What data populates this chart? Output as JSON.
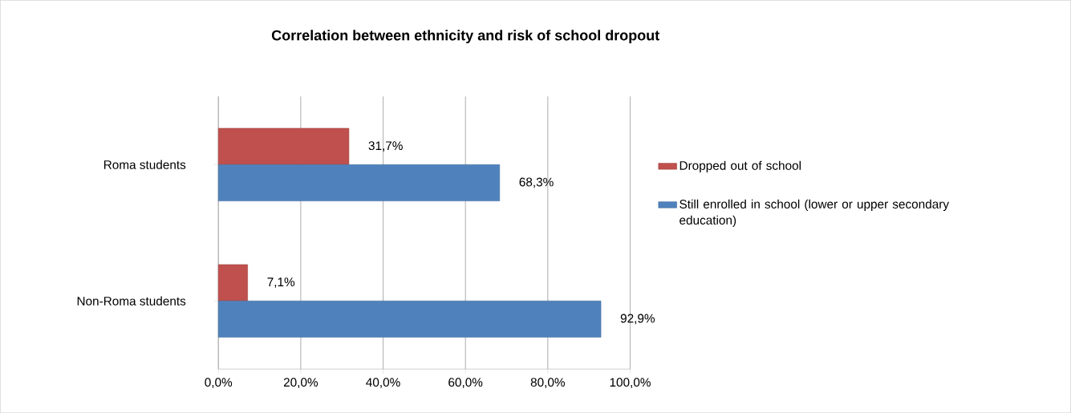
{
  "chart_data": {
    "type": "bar",
    "orientation": "horizontal",
    "title": "Correlation between ethnicity and risk of school dropout",
    "categories": [
      "Roma students",
      "Non-Roma students"
    ],
    "series": [
      {
        "name": "Dropped out of school",
        "color": "#c0504d",
        "values": [
          31.7,
          7.1
        ],
        "value_labels": [
          "31,7%",
          "7,1%"
        ]
      },
      {
        "name": "Still enrolled in school (lower or upper secondary education)",
        "color": "#4f81bd",
        "values": [
          68.3,
          92.9
        ],
        "value_labels": [
          "68,3%",
          "92,9%"
        ]
      }
    ],
    "xlim": [
      0,
      100
    ],
    "xticks": [
      {
        "value": 0,
        "label": "0,0%"
      },
      {
        "value": 20,
        "label": "20,0%"
      },
      {
        "value": 40,
        "label": "40,0%"
      },
      {
        "value": 60,
        "label": "60,0%"
      },
      {
        "value": 80,
        "label": "80,0%"
      },
      {
        "value": 100,
        "label": "100,0%"
      }
    ],
    "grid": "x",
    "legend": "right"
  }
}
